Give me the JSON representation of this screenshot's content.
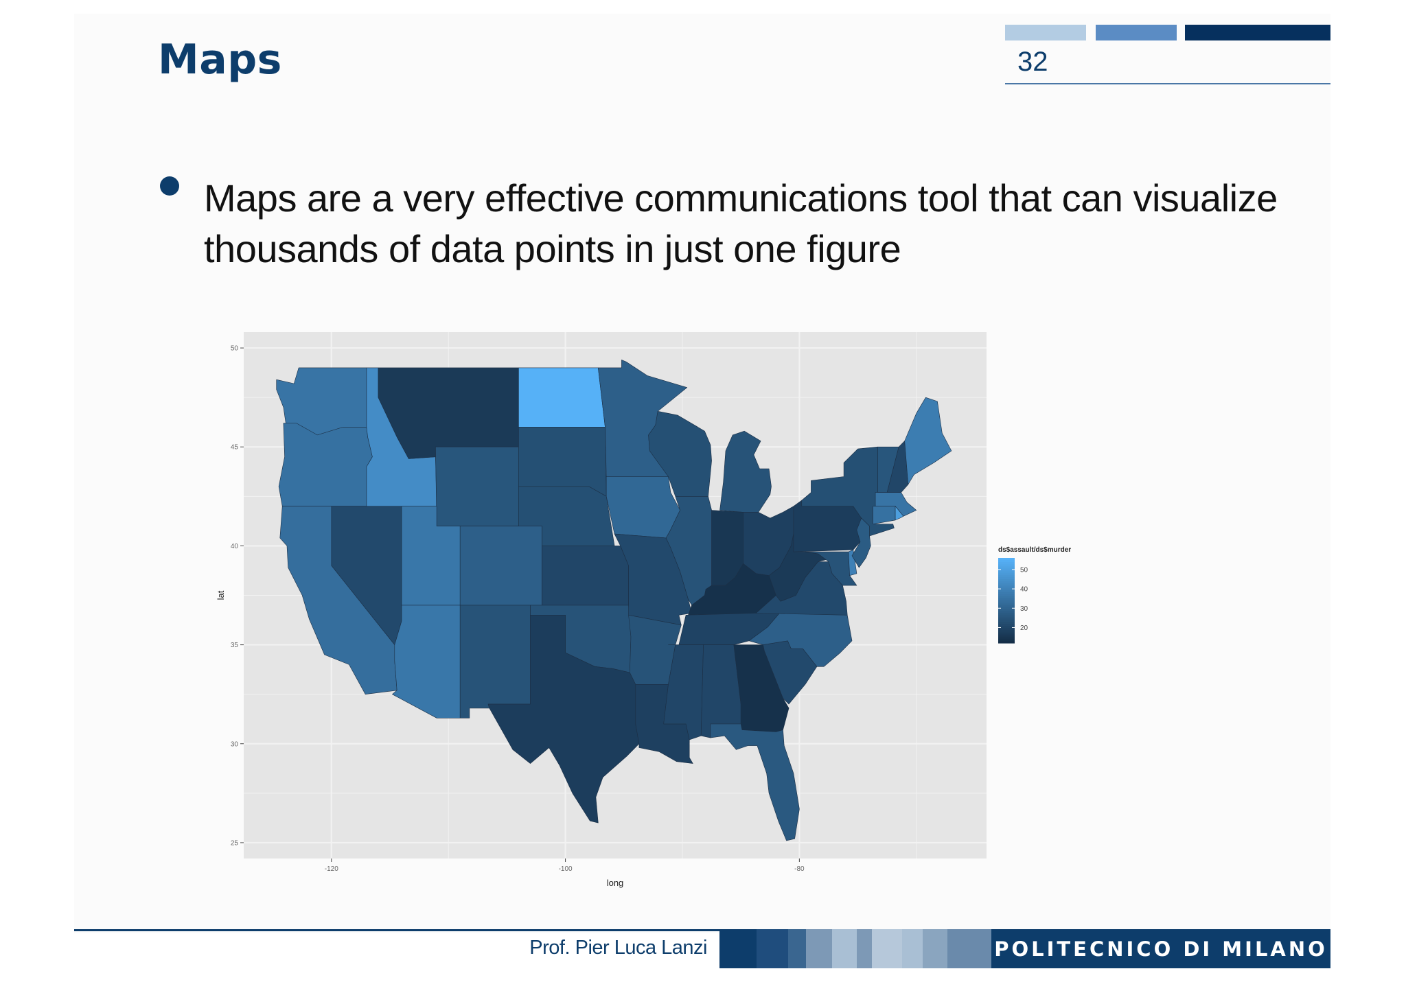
{
  "slide": {
    "title": "Maps",
    "page_number": "32",
    "bullet": "Maps are a very effective communications tool that can visualize thousands of data points in just one figure"
  },
  "footer": {
    "author": "Prof. Pier Luca Lanzi",
    "institution": "POLITECNICO DI MILANO"
  },
  "colors": {
    "brand_navy": "#0d3d6b",
    "deco_light": "#b3cce3",
    "deco_mid": "#5b8cc4",
    "deco_dark": "#06305e"
  },
  "chart_data": {
    "type": "choropleth",
    "xlabel": "long",
    "ylabel": "lat",
    "x_ticks": [
      -120,
      -100,
      -80
    ],
    "y_ticks": [
      25,
      30,
      35,
      40,
      45,
      50
    ],
    "xlim": [
      -127.5,
      -64
    ],
    "ylim": [
      24.2,
      50.8
    ],
    "legend": {
      "title": "ds$assault/ds$murder",
      "ticks": [
        20,
        30,
        40,
        50
      ],
      "min": 12,
      "max": 56,
      "placement": "right"
    },
    "grid": true,
    "background": "#e5e5e5",
    "color_low": "#132b43",
    "color_high": "#56b1f7",
    "regions": [
      {
        "name": "Washington",
        "value": 36
      },
      {
        "name": "Oregon",
        "value": 35
      },
      {
        "name": "California",
        "value": 34
      },
      {
        "name": "Nevada",
        "value": 22
      },
      {
        "name": "Idaho",
        "value": 44
      },
      {
        "name": "Montana",
        "value": 17
      },
      {
        "name": "Wyoming",
        "value": 26
      },
      {
        "name": "Utah",
        "value": 37
      },
      {
        "name": "Arizona",
        "value": 37
      },
      {
        "name": "Colorado",
        "value": 29
      },
      {
        "name": "New Mexico",
        "value": 25
      },
      {
        "name": "North Dakota",
        "value": 56
      },
      {
        "name": "South Dakota",
        "value": 24
      },
      {
        "name": "Nebraska",
        "value": 24
      },
      {
        "name": "Kansas",
        "value": 21
      },
      {
        "name": "Oklahoma",
        "value": 25
      },
      {
        "name": "Texas",
        "value": 18
      },
      {
        "name": "Minnesota",
        "value": 29
      },
      {
        "name": "Iowa",
        "value": 32
      },
      {
        "name": "Missouri",
        "value": 22
      },
      {
        "name": "Arkansas",
        "value": 25
      },
      {
        "name": "Louisiana",
        "value": 19
      },
      {
        "name": "Wisconsin",
        "value": 24
      },
      {
        "name": "Illinois",
        "value": 25
      },
      {
        "name": "Michigan",
        "value": 25
      },
      {
        "name": "Indiana",
        "value": 16
      },
      {
        "name": "Ohio",
        "value": 19
      },
      {
        "name": "Kentucky",
        "value": 14
      },
      {
        "name": "Tennessee",
        "value": 20
      },
      {
        "name": "Mississippi",
        "value": 21
      },
      {
        "name": "Alabama",
        "value": 21
      },
      {
        "name": "Georgia",
        "value": 14
      },
      {
        "name": "Florida",
        "value": 27
      },
      {
        "name": "South Carolina",
        "value": 22
      },
      {
        "name": "North Carolina",
        "value": 29
      },
      {
        "name": "Virginia",
        "value": 22
      },
      {
        "name": "West Virginia",
        "value": 17
      },
      {
        "name": "Pennsylvania",
        "value": 18
      },
      {
        "name": "New York",
        "value": 24
      },
      {
        "name": "Vermont",
        "value": 26
      },
      {
        "name": "New Hampshire",
        "value": 21
      },
      {
        "name": "Maine",
        "value": 39
      },
      {
        "name": "Massachusetts",
        "value": 36
      },
      {
        "name": "Connecticut",
        "value": 35
      },
      {
        "name": "Rhode Island",
        "value": 50
      },
      {
        "name": "New Jersey",
        "value": 28
      },
      {
        "name": "Delaware",
        "value": 40
      },
      {
        "name": "Maryland",
        "value": 25
      }
    ]
  }
}
